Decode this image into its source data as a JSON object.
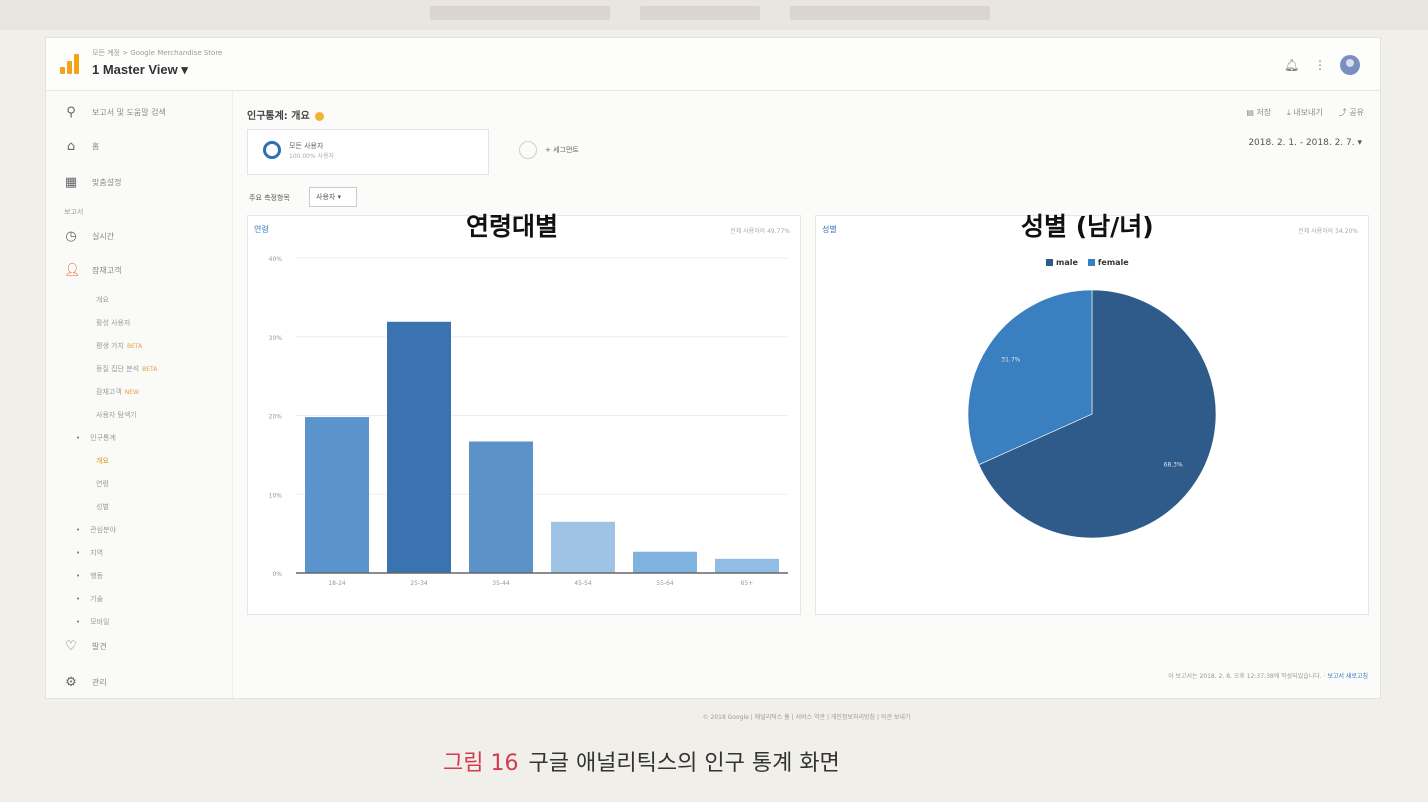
{
  "app": {
    "breadcrumb": "모든 계정 > Google Merchandise Store",
    "view_title": "1 Master View ▾"
  },
  "header_icons": [
    "bell-icon",
    "more-vert-icon",
    "avatar"
  ],
  "sidebar": {
    "search_placeholder": "보고서 및 도움말 검색",
    "home": "홈",
    "customization": "맞춤설정",
    "reports_heading": "보고서",
    "realtime": "실시간",
    "audience": "잠재고객",
    "audience_items": [
      {
        "label": "개요",
        "new": ""
      },
      {
        "label": "활성 사용자",
        "new": ""
      },
      {
        "label": "평생 가치",
        "new": "BETA"
      },
      {
        "label": "동질 집단 분석",
        "new": "BETA"
      },
      {
        "label": "잠재고객",
        "new": "NEW"
      },
      {
        "label": "사용자 탐색기",
        "new": ""
      }
    ],
    "demographics": "인구통계",
    "demographics_items": [
      "개요",
      "연령",
      "성별"
    ],
    "more_items": [
      "관심분야",
      "지역",
      "행동",
      "기술",
      "모바일"
    ],
    "discover": "발견",
    "admin": "관리"
  },
  "report": {
    "title": "인구통계: 개요",
    "toolbar": [
      "저장",
      "내보내기",
      "공유"
    ],
    "date_range": "2018. 2. 1. - 2018. 2. 7. ▾",
    "segments": [
      {
        "label": "모든 사용자",
        "sub": "100.00% 사용자"
      },
      {
        "label": "+ 세그먼트",
        "sub": ""
      }
    ],
    "dimension_label": "주요 측정항목",
    "dimension_value": "사용자 ▾"
  },
  "overlays": {
    "age": "연령대별",
    "gender": "성별 (남/녀)"
  },
  "age_card": {
    "title": "연령",
    "note": "전체 사용자의 49.77%"
  },
  "gender_card": {
    "title": "성별",
    "note": "전체 사용자의 54.20%"
  },
  "footnote": {
    "text": "이 보고서는 2018. 2. 8. 오후 12:37:38에 작성되었습니다.",
    "link": "보고서 새로고침"
  },
  "copyright": "© 2018 Google | 애널리틱스 홈 | 서비스 약관 | 개인정보처리방침 | 의견 보내기",
  "caption": {
    "fig": "그림 16",
    "text": "구글 애널리틱스의 인구 통계 화면"
  },
  "chart_data": [
    {
      "type": "bar",
      "title": "연령",
      "categories": [
        "18-24",
        "25-34",
        "35-44",
        "45-54",
        "55-64",
        "65+"
      ],
      "values": [
        19.8,
        31.9,
        16.7,
        6.5,
        2.7,
        1.8
      ],
      "ylim": [
        0,
        40
      ],
      "yticks": [
        "0%",
        "10%",
        "20%",
        "30%",
        "40%"
      ],
      "colors": [
        "#5b94cc",
        "#3b72b0",
        "#5d92c8",
        "#9fc3e4",
        "#7fb2de",
        "#8fbde3"
      ],
      "grid": true
    },
    {
      "type": "pie",
      "title": "성별",
      "labels": [
        "male",
        "female"
      ],
      "values": [
        68.3,
        31.7
      ],
      "colors": [
        "#2f5b8b",
        "#3a7fbf"
      ],
      "legend": "top"
    }
  ]
}
